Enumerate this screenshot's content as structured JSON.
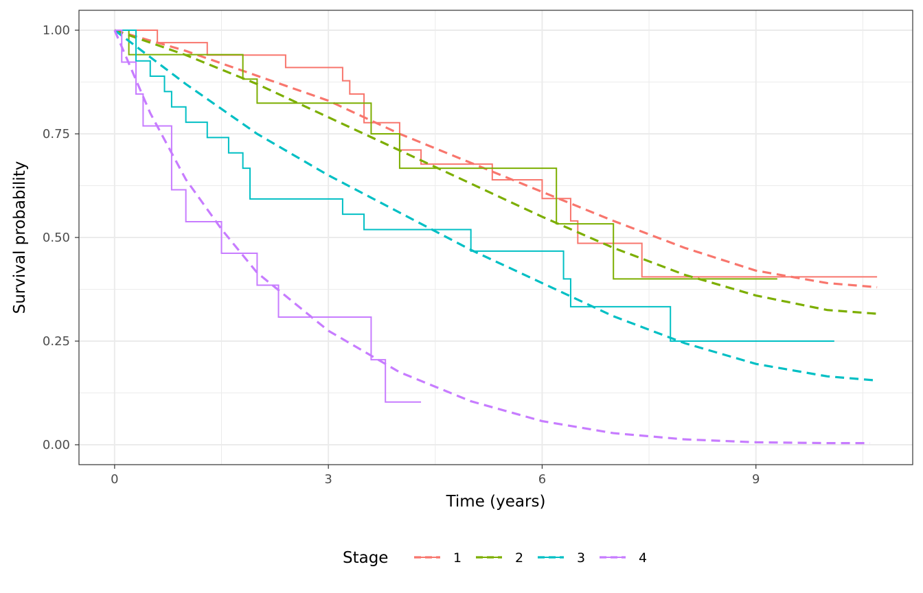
{
  "chart_data": {
    "type": "line",
    "title": "",
    "xlabel": "Time (years)",
    "ylabel": "Survival probability",
    "xlim": [
      -0.5,
      11.2
    ],
    "ylim": [
      -0.048,
      1.048
    ],
    "x_ticks": [
      0,
      3,
      6,
      9
    ],
    "x_tick_labels": [
      "0",
      "3",
      "6",
      "9"
    ],
    "y_ticks": [
      0,
      0.25,
      0.5,
      0.75,
      1.0
    ],
    "y_tick_labels": [
      "0.00",
      "0.25",
      "0.50",
      "0.75",
      "1.00"
    ],
    "grid": true,
    "legend": {
      "title": "Stage",
      "position": "bottom"
    },
    "series": [
      {
        "name": "1",
        "color": "#F8766D",
        "step": [
          [
            0.6,
            0.97
          ],
          [
            1.3,
            0.94
          ],
          [
            2.4,
            0.91
          ],
          [
            3.2,
            0.878
          ],
          [
            3.3,
            0.846
          ],
          [
            3.5,
            0.777
          ],
          [
            4.0,
            0.711
          ],
          [
            4.3,
            0.677
          ],
          [
            5.3,
            0.639
          ],
          [
            6.0,
            0.594
          ],
          [
            6.4,
            0.54
          ],
          [
            6.5,
            0.486
          ],
          [
            7.4,
            0.405
          ],
          [
            10.7,
            0.405
          ]
        ],
        "fit": [
          [
            0,
            1.0
          ],
          [
            1,
            0.95
          ],
          [
            2,
            0.89
          ],
          [
            3,
            0.83
          ],
          [
            4,
            0.75
          ],
          [
            5,
            0.68
          ],
          [
            6,
            0.61
          ],
          [
            7,
            0.54
          ],
          [
            8,
            0.475
          ],
          [
            9,
            0.42
          ],
          [
            10,
            0.39
          ],
          [
            10.7,
            0.38
          ]
        ]
      },
      {
        "name": "2",
        "color": "#7CAE00",
        "step": [
          [
            0.2,
            0.941
          ],
          [
            1.8,
            0.882
          ],
          [
            2.0,
            0.824
          ],
          [
            3.6,
            0.75
          ],
          [
            4.0,
            0.667
          ],
          [
            6.2,
            0.533
          ],
          [
            7.0,
            0.4
          ],
          [
            9.3,
            0.4
          ]
        ],
        "fit": [
          [
            0,
            1.0
          ],
          [
            1,
            0.94
          ],
          [
            2,
            0.87
          ],
          [
            3,
            0.79
          ],
          [
            4,
            0.71
          ],
          [
            5,
            0.63
          ],
          [
            6,
            0.55
          ],
          [
            7,
            0.475
          ],
          [
            8,
            0.41
          ],
          [
            9,
            0.36
          ],
          [
            10,
            0.325
          ],
          [
            10.7,
            0.316
          ]
        ]
      },
      {
        "name": "3",
        "color": "#00BFC4",
        "step": [
          [
            0.3,
            0.926
          ],
          [
            0.5,
            0.889
          ],
          [
            0.7,
            0.852
          ],
          [
            0.8,
            0.815
          ],
          [
            1.0,
            0.778
          ],
          [
            1.3,
            0.741
          ],
          [
            1.6,
            0.704
          ],
          [
            1.8,
            0.667
          ],
          [
            1.9,
            0.593
          ],
          [
            3.2,
            0.556
          ],
          [
            3.5,
            0.519
          ],
          [
            5.0,
            0.467
          ],
          [
            6.3,
            0.4
          ],
          [
            6.4,
            0.333
          ],
          [
            7.8,
            0.25
          ],
          [
            10.1,
            0.25
          ]
        ],
        "fit": [
          [
            0,
            1.0
          ],
          [
            1,
            0.87
          ],
          [
            2,
            0.75
          ],
          [
            3,
            0.65
          ],
          [
            4,
            0.56
          ],
          [
            5,
            0.47
          ],
          [
            6,
            0.39
          ],
          [
            7,
            0.31
          ],
          [
            8,
            0.245
          ],
          [
            9,
            0.195
          ],
          [
            10,
            0.165
          ],
          [
            10.7,
            0.155
          ]
        ]
      },
      {
        "name": "4",
        "color": "#C77CFF",
        "step": [
          [
            0.1,
            0.923
          ],
          [
            0.3,
            0.846
          ],
          [
            0.4,
            0.769
          ],
          [
            0.8,
            0.615
          ],
          [
            1.0,
            0.538
          ],
          [
            1.5,
            0.462
          ],
          [
            2.0,
            0.385
          ],
          [
            2.3,
            0.308
          ],
          [
            3.6,
            0.205
          ],
          [
            3.8,
            0.103
          ],
          [
            4.3,
            0.103
          ]
        ],
        "fit": [
          [
            0,
            1.0
          ],
          [
            0.5,
            0.8
          ],
          [
            1,
            0.64
          ],
          [
            1.5,
            0.52
          ],
          [
            2,
            0.415
          ],
          [
            3,
            0.275
          ],
          [
            4,
            0.175
          ],
          [
            5,
            0.105
          ],
          [
            6,
            0.057
          ],
          [
            7,
            0.028
          ],
          [
            8,
            0.013
          ],
          [
            9,
            0.006
          ],
          [
            10,
            0.004
          ],
          [
            10.6,
            0.004
          ]
        ]
      }
    ]
  }
}
